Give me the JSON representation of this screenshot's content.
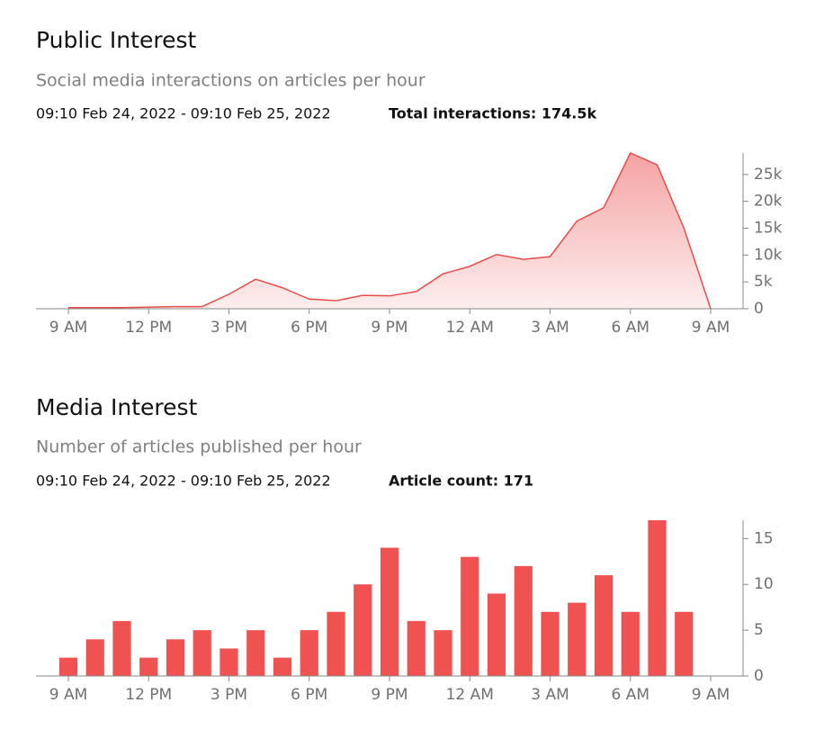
{
  "chart_data": [
    {
      "type": "area",
      "title": "Public Interest",
      "subtitle": "Social media interactions on articles per hour",
      "date_range": "09:10 Feb 24, 2022 - 09:10 Feb 25, 2022",
      "summary": "Total interactions: 174.5k",
      "x": [
        0,
        1,
        2,
        3,
        4,
        5,
        6,
        7,
        8,
        9,
        10,
        11,
        12,
        13,
        14,
        15,
        16,
        17,
        18,
        19,
        20,
        21,
        22,
        23,
        24
      ],
      "values": [
        200,
        200,
        200,
        300,
        400,
        400,
        2700,
        5500,
        3900,
        1800,
        1500,
        2500,
        2400,
        3200,
        6500,
        7900,
        10100,
        9200,
        9700,
        16300,
        18800,
        29000,
        26800,
        15000,
        0
      ],
      "color": "#e84c4c",
      "xlim": [
        0,
        24
      ],
      "xticks": [
        {
          "value": 0,
          "label": "9 AM"
        },
        {
          "value": 3,
          "label": "12 PM"
        },
        {
          "value": 6,
          "label": "3 PM"
        },
        {
          "value": 9,
          "label": "6 PM"
        },
        {
          "value": 12,
          "label": "9 PM"
        },
        {
          "value": 15,
          "label": "12 AM"
        },
        {
          "value": 18,
          "label": "3 AM"
        },
        {
          "value": 21,
          "label": "6 AM"
        },
        {
          "value": 24,
          "label": "9 AM"
        }
      ],
      "ylim": [
        0,
        29000
      ],
      "yticks": [
        0,
        {
          "value": 5000,
          "label": "5k"
        },
        {
          "value": 10000,
          "label": "10k"
        },
        {
          "value": 15000,
          "label": "15k"
        },
        {
          "value": 20000,
          "label": "20k"
        },
        {
          "value": 25000,
          "label": "25k"
        }
      ]
    },
    {
      "type": "bar",
      "title": "Media Interest",
      "subtitle": "Number of articles published per hour",
      "date_range": "09:10 Feb 24, 2022 - 09:10 Feb 25, 2022",
      "summary": "Article count: 171",
      "x": [
        0,
        1,
        2,
        3,
        4,
        5,
        6,
        7,
        8,
        9,
        10,
        11,
        12,
        13,
        14,
        15,
        16,
        17,
        18,
        19,
        20,
        21,
        22,
        23
      ],
      "values": [
        2,
        4,
        6,
        2,
        4,
        5,
        3,
        5,
        2,
        5,
        7,
        10,
        14,
        6,
        5,
        13,
        9,
        12,
        7,
        8,
        11,
        7,
        17,
        7
      ],
      "color": "#f05252",
      "xlim": [
        0,
        24
      ],
      "xticks": [
        {
          "value": 0,
          "label": "9 AM"
        },
        {
          "value": 3,
          "label": "12 PM"
        },
        {
          "value": 6,
          "label": "3 PM"
        },
        {
          "value": 9,
          "label": "6 PM"
        },
        {
          "value": 12,
          "label": "9 PM"
        },
        {
          "value": 15,
          "label": "12 AM"
        },
        {
          "value": 18,
          "label": "3 AM"
        },
        {
          "value": 21,
          "label": "6 AM"
        },
        {
          "value": 24,
          "label": "9 AM"
        }
      ],
      "ylim": [
        0,
        17
      ],
      "yticks": [
        0,
        5,
        10,
        15
      ]
    }
  ]
}
